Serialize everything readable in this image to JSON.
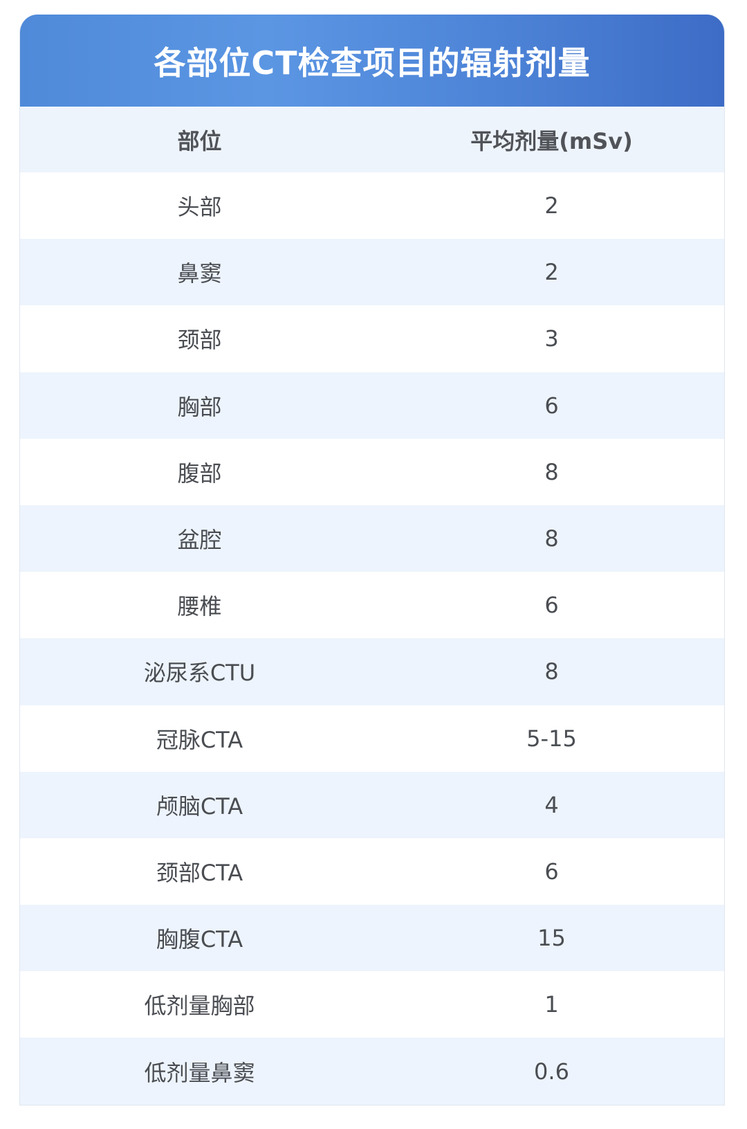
{
  "title": "各部位CT检查项目的辐射剂量",
  "columns": [
    "部位",
    "平均剂量(mSv)"
  ],
  "rows": [
    {
      "part": "头部",
      "dose": "2"
    },
    {
      "part": "鼻窦",
      "dose": "2"
    },
    {
      "part": "颈部",
      "dose": "3"
    },
    {
      "part": "胸部",
      "dose": "6"
    },
    {
      "part": "腹部",
      "dose": "8"
    },
    {
      "part": "盆腔",
      "dose": "8"
    },
    {
      "part": "腰椎",
      "dose": "6"
    },
    {
      "part": "泌尿系CTU",
      "dose": "8"
    },
    {
      "part": "冠脉CTA",
      "dose": "5-15"
    },
    {
      "part": "颅脑CTA",
      "dose": "4"
    },
    {
      "part": "颈部CTA",
      "dose": "6"
    },
    {
      "part": "胸腹CTA",
      "dose": "15"
    },
    {
      "part": "低剂量胸部",
      "dose": "1"
    },
    {
      "part": "低剂量鼻窦",
      "dose": "0.6"
    }
  ],
  "colors": {
    "header_blue": "#4f8ad9",
    "stripe": "#edf4fd",
    "text": "#4a4d52"
  }
}
